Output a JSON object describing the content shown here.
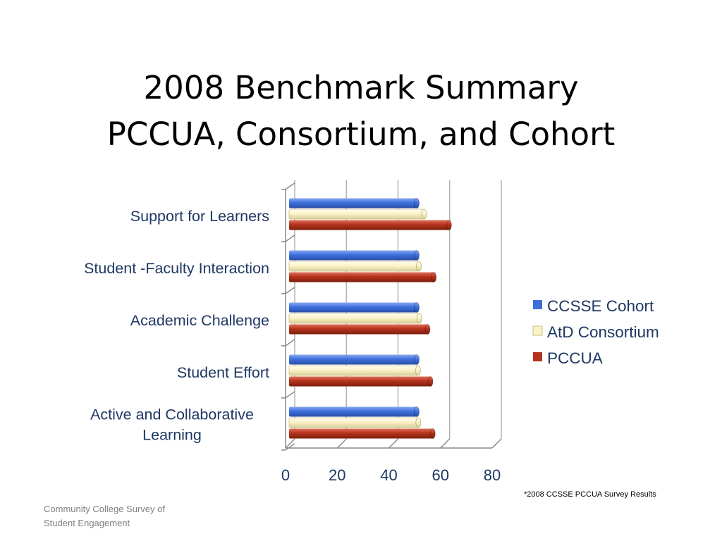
{
  "slide": {
    "title_line1": "2008 Benchmark Summary",
    "title_line2": "PCCUA, Consortium, and Cohort",
    "footnote": "*2008 CCSSE  PCCUA Survey Results",
    "footer_line1": "Community College Survey of",
    "footer_line2": "Student Engagement"
  },
  "chart_data": {
    "type": "bar",
    "orientation": "horizontal",
    "categories": [
      [
        "Support for Learners"
      ],
      [
        "Student -Faculty Interaction"
      ],
      [
        "Academic Challenge"
      ],
      [
        "Student Effort"
      ],
      [
        "Active and Collaborative",
        "Learning"
      ]
    ],
    "series": [
      {
        "name": "CCSSE Cohort",
        "color": "#3d6fdc",
        "values": [
          50.8,
          50.8,
          50.8,
          50.8,
          50.8
        ]
      },
      {
        "name": "AtD Consortium",
        "color": "#fbf3c8",
        "values": [
          53.6,
          51.6,
          51.8,
          51.3,
          51.4
        ]
      },
      {
        "name": "PCCUA",
        "color": "#b5321b",
        "values": [
          63.3,
          57.4,
          55.0,
          56.1,
          57.0
        ]
      }
    ],
    "xlim": [
      0,
      80
    ],
    "x_ticks": [
      "0",
      "20",
      "40",
      "60",
      "80"
    ],
    "grid": true,
    "legend_position": "right"
  }
}
